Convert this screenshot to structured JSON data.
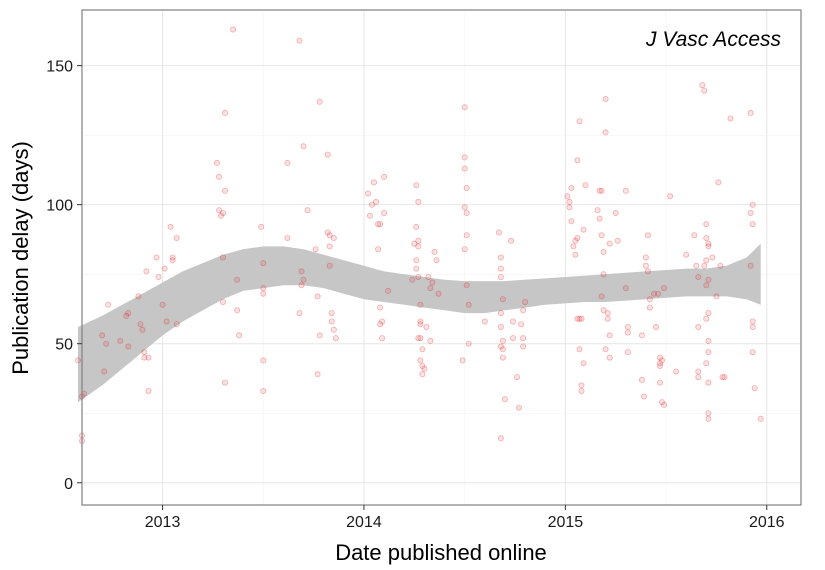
{
  "chart_data": {
    "type": "scatter",
    "title": "",
    "annotation": "J Vasc Access",
    "xlabel": "Date published online",
    "ylabel": "Publication delay (days)",
    "xlim": [
      2012.6,
      2016.17
    ],
    "ylim": [
      -8,
      170
    ],
    "x_ticks": [
      2013,
      2014,
      2015,
      2016
    ],
    "x_tick_labels": [
      "2013",
      "2014",
      "2015",
      "2016"
    ],
    "y_ticks": [
      0,
      50,
      100,
      150
    ],
    "y_tick_labels": [
      "0",
      "50",
      "100",
      "150"
    ],
    "grid": true,
    "point_color": "#e31a1c",
    "band_color": "#c6c6c6",
    "points": [
      [
        2012.58,
        44
      ],
      [
        2012.6,
        31
      ],
      [
        2012.61,
        32
      ],
      [
        2012.6,
        17
      ],
      [
        2012.6,
        15
      ],
      [
        2012.7,
        53
      ],
      [
        2012.71,
        40
      ],
      [
        2012.72,
        50
      ],
      [
        2012.73,
        64
      ],
      [
        2012.79,
        51
      ],
      [
        2012.82,
        60
      ],
      [
        2012.83,
        61
      ],
      [
        2012.83,
        49
      ],
      [
        2012.88,
        67
      ],
      [
        2012.89,
        57
      ],
      [
        2012.9,
        55
      ],
      [
        2012.91,
        47
      ],
      [
        2012.91,
        45
      ],
      [
        2012.92,
        76
      ],
      [
        2012.93,
        33
      ],
      [
        2012.93,
        45
      ],
      [
        2012.97,
        81
      ],
      [
        2012.98,
        74
      ],
      [
        2013.0,
        64
      ],
      [
        2013.01,
        77
      ],
      [
        2013.02,
        58
      ],
      [
        2013.04,
        92
      ],
      [
        2013.05,
        81
      ],
      [
        2013.05,
        80
      ],
      [
        2013.07,
        57
      ],
      [
        2013.07,
        88
      ],
      [
        2013.27,
        115
      ],
      [
        2013.28,
        110
      ],
      [
        2013.28,
        98
      ],
      [
        2013.29,
        96
      ],
      [
        2013.3,
        97
      ],
      [
        2013.3,
        81
      ],
      [
        2013.3,
        65
      ],
      [
        2013.31,
        133
      ],
      [
        2013.31,
        105
      ],
      [
        2013.31,
        36
      ],
      [
        2013.35,
        163
      ],
      [
        2013.37,
        73
      ],
      [
        2013.38,
        53
      ],
      [
        2013.37,
        62
      ],
      [
        2013.49,
        92
      ],
      [
        2013.5,
        79
      ],
      [
        2013.5,
        70
      ],
      [
        2013.5,
        68
      ],
      [
        2013.5,
        44
      ],
      [
        2013.5,
        33
      ],
      [
        2013.62,
        115
      ],
      [
        2013.62,
        88
      ],
      [
        2013.68,
        159
      ],
      [
        2013.7,
        121
      ],
      [
        2013.72,
        98
      ],
      [
        2013.69,
        76
      ],
      [
        2013.7,
        73
      ],
      [
        2013.69,
        71
      ],
      [
        2013.68,
        61
      ],
      [
        2013.76,
        84
      ],
      [
        2013.78,
        137
      ],
      [
        2013.77,
        67
      ],
      [
        2013.78,
        53
      ],
      [
        2013.77,
        39
      ],
      [
        2013.82,
        118
      ],
      [
        2013.82,
        90
      ],
      [
        2013.83,
        89
      ],
      [
        2013.83,
        85
      ],
      [
        2013.83,
        78
      ],
      [
        2013.84,
        61
      ],
      [
        2013.84,
        58
      ],
      [
        2013.85,
        55
      ],
      [
        2013.86,
        52
      ],
      [
        2013.85,
        88
      ],
      [
        2014.02,
        104
      ],
      [
        2014.03,
        96
      ],
      [
        2014.04,
        100
      ],
      [
        2014.05,
        108
      ],
      [
        2014.06,
        101
      ],
      [
        2014.07,
        93
      ],
      [
        2014.08,
        93
      ],
      [
        2014.07,
        84
      ],
      [
        2014.08,
        63
      ],
      [
        2014.09,
        52
      ],
      [
        2014.08,
        57
      ],
      [
        2014.09,
        58
      ],
      [
        2014.1,
        110
      ],
      [
        2014.1,
        97
      ],
      [
        2014.12,
        69
      ],
      [
        2014.24,
        73
      ],
      [
        2014.25,
        86
      ],
      [
        2014.26,
        107
      ],
      [
        2014.27,
        101
      ],
      [
        2014.26,
        92
      ],
      [
        2014.27,
        87
      ],
      [
        2014.27,
        85
      ],
      [
        2014.26,
        80
      ],
      [
        2014.26,
        77
      ],
      [
        2014.27,
        74
      ],
      [
        2014.28,
        64
      ],
      [
        2014.28,
        58
      ],
      [
        2014.28,
        57
      ],
      [
        2014.27,
        52
      ],
      [
        2014.28,
        52
      ],
      [
        2014.29,
        48
      ],
      [
        2014.28,
        44
      ],
      [
        2014.29,
        42
      ],
      [
        2014.3,
        41
      ],
      [
        2014.29,
        39
      ],
      [
        2014.31,
        56
      ],
      [
        2014.32,
        74
      ],
      [
        2014.33,
        70
      ],
      [
        2014.34,
        72
      ],
      [
        2014.33,
        51
      ],
      [
        2014.35,
        83
      ],
      [
        2014.36,
        80
      ],
      [
        2014.37,
        68
      ],
      [
        2014.49,
        44
      ],
      [
        2014.5,
        135
      ],
      [
        2014.5,
        117
      ],
      [
        2014.5,
        113
      ],
      [
        2014.51,
        106
      ],
      [
        2014.5,
        99
      ],
      [
        2014.51,
        97
      ],
      [
        2014.51,
        89
      ],
      [
        2014.5,
        84
      ],
      [
        2014.51,
        71
      ],
      [
        2014.52,
        64
      ],
      [
        2014.52,
        50
      ],
      [
        2014.6,
        58
      ],
      [
        2014.67,
        90
      ],
      [
        2014.68,
        81
      ],
      [
        2014.68,
        77
      ],
      [
        2014.68,
        74
      ],
      [
        2014.69,
        66
      ],
      [
        2014.68,
        61
      ],
      [
        2014.68,
        56
      ],
      [
        2014.69,
        51
      ],
      [
        2014.68,
        49
      ],
      [
        2014.69,
        48
      ],
      [
        2014.69,
        45
      ],
      [
        2014.68,
        16
      ],
      [
        2014.7,
        30
      ],
      [
        2014.73,
        87
      ],
      [
        2014.74,
        58
      ],
      [
        2014.74,
        52
      ],
      [
        2014.76,
        38
      ],
      [
        2014.77,
        27
      ],
      [
        2014.78,
        57
      ],
      [
        2014.79,
        52
      ],
      [
        2014.79,
        49
      ],
      [
        2014.79,
        62
      ],
      [
        2014.8,
        65
      ],
      [
        2015.01,
        103
      ],
      [
        2015.02,
        101
      ],
      [
        2015.02,
        99
      ],
      [
        2015.03,
        106
      ],
      [
        2015.03,
        94
      ],
      [
        2015.04,
        85
      ],
      [
        2015.05,
        82
      ],
      [
        2015.05,
        87
      ],
      [
        2015.06,
        88
      ],
      [
        2015.06,
        116
      ],
      [
        2015.07,
        130
      ],
      [
        2015.06,
        59
      ],
      [
        2015.07,
        59
      ],
      [
        2015.08,
        59
      ],
      [
        2015.07,
        48
      ],
      [
        2015.09,
        43
      ],
      [
        2015.08,
        35
      ],
      [
        2015.08,
        33
      ],
      [
        2015.09,
        91
      ],
      [
        2015.1,
        107
      ],
      [
        2015.16,
        98
      ],
      [
        2015.17,
        105
      ],
      [
        2015.18,
        105
      ],
      [
        2015.17,
        95
      ],
      [
        2015.18,
        89
      ],
      [
        2015.19,
        83
      ],
      [
        2015.19,
        75
      ],
      [
        2015.18,
        67
      ],
      [
        2015.19,
        62
      ],
      [
        2015.2,
        138
      ],
      [
        2015.2,
        126
      ],
      [
        2015.22,
        86
      ],
      [
        2015.21,
        61
      ],
      [
        2015.21,
        59
      ],
      [
        2015.22,
        53
      ],
      [
        2015.2,
        48
      ],
      [
        2015.22,
        45
      ],
      [
        2015.25,
        97
      ],
      [
        2015.26,
        87
      ],
      [
        2015.3,
        105
      ],
      [
        2015.3,
        70
      ],
      [
        2015.31,
        56
      ],
      [
        2015.31,
        54
      ],
      [
        2015.31,
        47
      ],
      [
        2015.38,
        37
      ],
      [
        2015.39,
        31
      ],
      [
        2015.38,
        53
      ],
      [
        2015.4,
        81
      ],
      [
        2015.4,
        78
      ],
      [
        2015.41,
        76
      ],
      [
        2015.41,
        89
      ],
      [
        2015.42,
        63
      ],
      [
        2015.42,
        66
      ],
      [
        2015.44,
        68
      ],
      [
        2015.45,
        56
      ],
      [
        2015.46,
        68
      ],
      [
        2015.47,
        45
      ],
      [
        2015.47,
        43
      ],
      [
        2015.47,
        42
      ],
      [
        2015.47,
        36
      ],
      [
        2015.48,
        29
      ],
      [
        2015.49,
        28
      ],
      [
        2015.48,
        44
      ],
      [
        2015.49,
        70
      ],
      [
        2015.52,
        103
      ],
      [
        2015.55,
        40
      ],
      [
        2015.6,
        82
      ],
      [
        2015.64,
        89
      ],
      [
        2015.66,
        56
      ],
      [
        2015.66,
        40
      ],
      [
        2015.66,
        38
      ],
      [
        2015.65,
        78
      ],
      [
        2015.66,
        74
      ],
      [
        2015.68,
        143
      ],
      [
        2015.69,
        141
      ],
      [
        2015.7,
        93
      ],
      [
        2015.7,
        88
      ],
      [
        2015.71,
        86
      ],
      [
        2015.71,
        85
      ],
      [
        2015.7,
        80
      ],
      [
        2015.69,
        78
      ],
      [
        2015.71,
        73
      ],
      [
        2015.7,
        71
      ],
      [
        2015.71,
        61
      ],
      [
        2015.7,
        59
      ],
      [
        2015.71,
        51
      ],
      [
        2015.71,
        47
      ],
      [
        2015.7,
        43
      ],
      [
        2015.71,
        36
      ],
      [
        2015.71,
        25
      ],
      [
        2015.71,
        23
      ],
      [
        2015.73,
        81
      ],
      [
        2015.75,
        67
      ],
      [
        2015.76,
        108
      ],
      [
        2015.77,
        78
      ],
      [
        2015.78,
        38
      ],
      [
        2015.79,
        38
      ],
      [
        2015.82,
        131
      ],
      [
        2015.92,
        133
      ],
      [
        2015.93,
        100
      ],
      [
        2015.92,
        97
      ],
      [
        2015.93,
        93
      ],
      [
        2015.92,
        78
      ],
      [
        2015.93,
        58
      ],
      [
        2015.93,
        56
      ],
      [
        2015.93,
        47
      ],
      [
        2015.94,
        34
      ],
      [
        2015.97,
        23
      ]
    ],
    "smooth_band": {
      "x": [
        2012.58,
        2012.7,
        2012.8,
        2012.9,
        2013.0,
        2013.1,
        2013.2,
        2013.3,
        2013.4,
        2013.5,
        2013.6,
        2013.7,
        2013.8,
        2013.9,
        2014.0,
        2014.1,
        2014.2,
        2014.3,
        2014.4,
        2014.5,
        2014.6,
        2014.7,
        2014.8,
        2014.9,
        2015.0,
        2015.1,
        2015.2,
        2015.3,
        2015.4,
        2015.5,
        2015.6,
        2015.7,
        2015.8,
        2015.9,
        2015.97
      ],
      "upper": [
        56,
        60,
        64,
        68,
        72,
        76,
        79,
        82,
        84,
        85,
        85,
        84,
        82,
        80,
        78,
        76,
        75,
        74,
        73,
        72.5,
        72.5,
        72.5,
        73,
        73.5,
        74,
        74.5,
        75,
        75.5,
        76,
        76.5,
        77,
        77,
        78,
        81,
        86
      ],
      "lower": [
        29,
        35,
        41,
        47,
        53,
        58,
        62,
        66,
        69,
        70,
        71,
        71,
        70,
        68,
        66,
        65,
        64,
        63,
        62,
        61,
        61,
        62,
        63,
        64,
        64.5,
        65,
        65,
        65.5,
        66,
        66.5,
        67,
        67,
        67,
        66,
        64
      ]
    }
  }
}
